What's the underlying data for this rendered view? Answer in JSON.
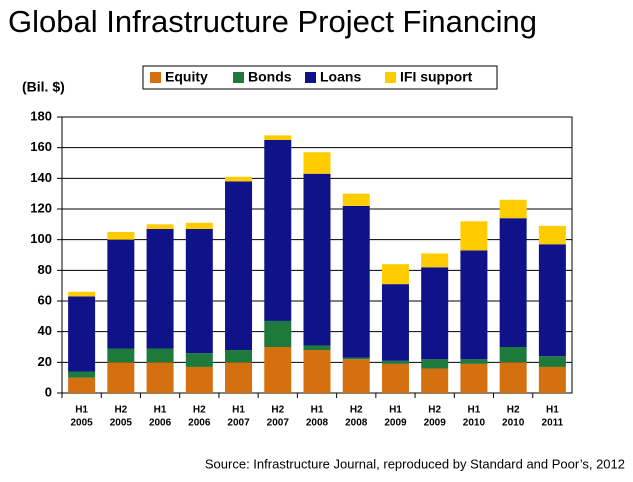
{
  "chart_data": {
    "type": "stacked_bar",
    "title": "Global Infrastructure Project Financing",
    "y_label": "(Bil. $)",
    "source": "Source: Infrastructure Journal, reproduced by Standard and Poor’s, 2012",
    "categories": [
      [
        "H1",
        "2005"
      ],
      [
        "H2",
        "2005"
      ],
      [
        "H1",
        "2006"
      ],
      [
        "H2",
        "2006"
      ],
      [
        "H1",
        "2007"
      ],
      [
        "H2",
        "2007"
      ],
      [
        "H1",
        "2008"
      ],
      [
        "H2",
        "2008"
      ],
      [
        "H1",
        "2009"
      ],
      [
        "H2",
        "2009"
      ],
      [
        "H1",
        "2010"
      ],
      [
        "H2",
        "2010"
      ],
      [
        "H1",
        "2011"
      ]
    ],
    "series": [
      {
        "name": "Equity",
        "color": "#d4700f",
        "values": [
          10,
          20,
          20,
          17,
          20,
          30,
          28,
          22,
          19,
          16,
          19,
          20,
          17
        ]
      },
      {
        "name": "Bonds",
        "color": "#1d7a3a",
        "values": [
          4,
          9,
          9,
          9,
          8,
          17,
          3,
          1,
          2,
          6,
          3,
          10,
          7
        ]
      },
      {
        "name": "Loans",
        "color": "#10128a",
        "values": [
          49,
          71,
          78,
          81,
          110,
          118,
          112,
          99,
          50,
          60,
          71,
          84,
          73
        ]
      },
      {
        "name": "IFI support",
        "color": "#ffcc00",
        "values": [
          3,
          5,
          3,
          4,
          3,
          3,
          14,
          8,
          13,
          9,
          19,
          12,
          12
        ]
      }
    ],
    "ylim": [
      0,
      180
    ],
    "yticks": [
      0,
      20,
      40,
      60,
      80,
      100,
      120,
      140,
      160,
      180
    ],
    "grid": true
  }
}
